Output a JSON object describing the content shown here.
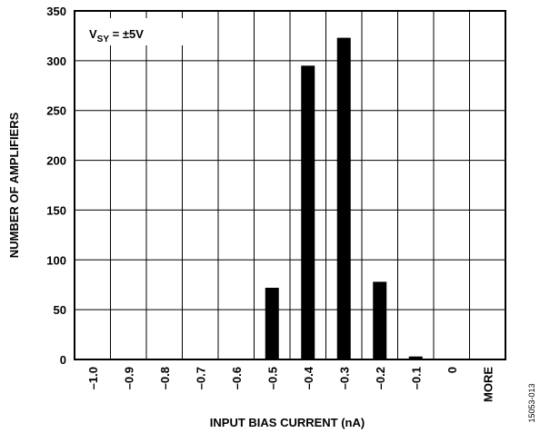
{
  "chart_data": {
    "type": "bar",
    "title": "",
    "xlabel": "INPUT BIAS CURRENT (nA)",
    "ylabel": "NUMBER OF AMPLIFIERS",
    "categories": [
      "–1.0",
      "–0.9",
      "–0.8",
      "–0.7",
      "–0.6",
      "–0.5",
      "–0.4",
      "–0.3",
      "–0.2",
      "–0.1",
      "0",
      "MORE"
    ],
    "values": [
      0,
      0,
      0,
      0,
      0,
      72,
      295,
      323,
      78,
      3,
      0,
      0
    ],
    "ylim": [
      0,
      350
    ],
    "yticks": [
      0,
      50,
      100,
      150,
      200,
      250,
      300,
      350
    ],
    "grid": true,
    "bar_color": "#000000",
    "annotation": {
      "main": "V",
      "subscript": "SY",
      "rest": " = ±5V"
    },
    "figure_id": "15053-013"
  }
}
